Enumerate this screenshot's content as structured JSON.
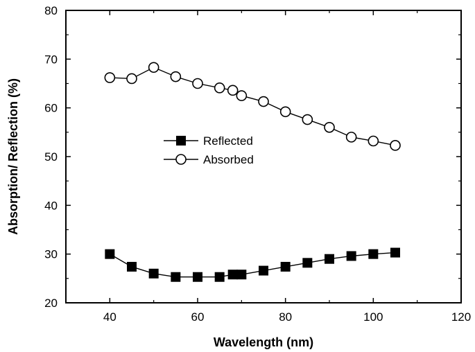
{
  "chart_data": {
    "type": "line",
    "title": "",
    "xlabel": "Wavelength (nm)",
    "ylabel": "Absorption/ Reflection (%)",
    "xlim": [
      30,
      120
    ],
    "ylim": [
      20,
      80
    ],
    "xticks": [
      40,
      60,
      80,
      100,
      120
    ],
    "yticks": [
      20,
      30,
      40,
      50,
      60,
      70,
      80
    ],
    "legend_position": "center-left",
    "series": [
      {
        "name": "Reflected",
        "marker": "filled-square",
        "color": "#000000",
        "x": [
          40,
          45,
          50,
          55,
          60,
          65,
          68,
          70,
          75,
          80,
          85,
          90,
          95,
          100,
          105
        ],
        "y": [
          30.0,
          27.4,
          26.0,
          25.3,
          25.3,
          25.3,
          25.8,
          25.8,
          26.6,
          27.4,
          28.2,
          29.0,
          29.6,
          30.0,
          30.3
        ]
      },
      {
        "name": "Absorbed",
        "marker": "open-circle",
        "color": "#000000",
        "x": [
          40,
          45,
          50,
          55,
          60,
          65,
          68,
          70,
          75,
          80,
          85,
          90,
          95,
          100,
          105
        ],
        "y": [
          66.2,
          66.0,
          68.3,
          66.4,
          65.0,
          64.1,
          63.6,
          62.5,
          61.3,
          59.2,
          57.6,
          56.0,
          54.0,
          53.2,
          52.3
        ]
      }
    ]
  }
}
